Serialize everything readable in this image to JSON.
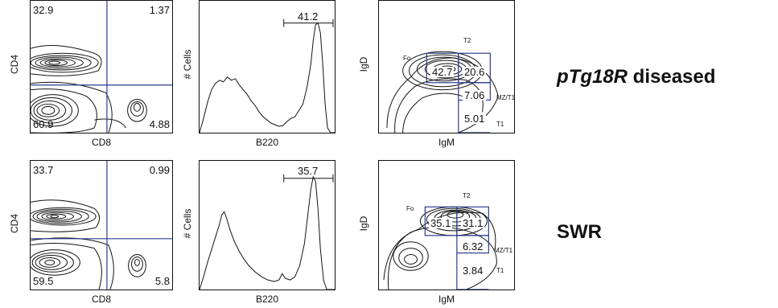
{
  "figure": {
    "rows": [
      {
        "condition_italic": "pTg18R",
        "condition_rest": " diseased",
        "cd4cd8": {
          "q_tl": "32.9",
          "q_tr": "1.37",
          "q_bl": "60.9",
          "q_br": "4.88",
          "xlabel": "CD8",
          "ylabel": "CD4"
        },
        "b220": {
          "gate_value": "41.2",
          "xlabel": "B220",
          "ylabel": "# Cells"
        },
        "igd_igm": {
          "fo_label": "Fo",
          "t2_label": "T2",
          "mzt1_label": "MZ/T1",
          "t1_label": "T1",
          "g1": "42.7",
          "g2": "20.6",
          "g3": "7.06",
          "g4": "5.01",
          "xlabel": "IgM",
          "ylabel": "IgD"
        }
      },
      {
        "condition_italic": "",
        "condition_rest": "SWR",
        "cd4cd8": {
          "q_tl": "33.7",
          "q_tr": "0.99",
          "q_bl": "59.5",
          "q_br": "5.8",
          "xlabel": "CD8",
          "ylabel": "CD4"
        },
        "b220": {
          "gate_value": "35.7",
          "xlabel": "B220",
          "ylabel": "# Cells"
        },
        "igd_igm": {
          "fo_label": "Fo",
          "t2_label": "T2",
          "mzt1_label": "MZ/T1",
          "t1_label": "T1",
          "g1": "35.1",
          "g2": "31.1",
          "g3": "6.32",
          "g4": "3.84",
          "xlabel": "IgM",
          "ylabel": "IgD"
        }
      }
    ],
    "colors": {
      "gate_line": "#2b3a8f",
      "ink": "#111111"
    }
  }
}
